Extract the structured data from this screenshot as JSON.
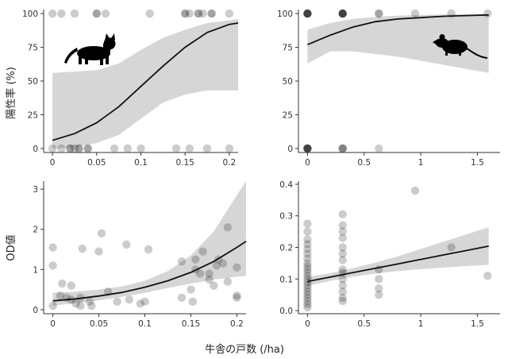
{
  "figure": {
    "ylabel_top": "陽性率 (%)",
    "ylabel_bottom": "OD値",
    "xlabel": "牛舎の戸数 (/ha)"
  },
  "chart_data": [
    {
      "panel": "top-left",
      "type": "scatter",
      "description_icon": "cat-silhouette-icon",
      "xlim": [
        -0.01,
        0.21
      ],
      "ylim": [
        -3,
        103
      ],
      "xticks": [
        "0",
        "0.05",
        "0.1",
        "0.15",
        "0.2"
      ],
      "xtick_values": [
        0,
        0.05,
        0.1,
        0.15,
        0.2
      ],
      "yticks": [
        "0",
        "25",
        "50",
        "75",
        "100"
      ],
      "ytick_values": [
        0,
        25,
        50,
        75,
        100
      ],
      "points": [
        {
          "x": 0.0,
          "y": 100,
          "n": 1
        },
        {
          "x": 0.01,
          "y": 100,
          "n": 1
        },
        {
          "x": 0.025,
          "y": 100,
          "n": 1
        },
        {
          "x": 0.05,
          "y": 100,
          "n": 2
        },
        {
          "x": 0.06,
          "y": 100,
          "n": 1
        },
        {
          "x": 0.11,
          "y": 100,
          "n": 1
        },
        {
          "x": 0.15,
          "y": 100,
          "n": 2
        },
        {
          "x": 0.155,
          "y": 100,
          "n": 1
        },
        {
          "x": 0.165,
          "y": 100,
          "n": 2
        },
        {
          "x": 0.17,
          "y": 100,
          "n": 1
        },
        {
          "x": 0.18,
          "y": 100,
          "n": 2
        },
        {
          "x": 0.2,
          "y": 100,
          "n": 1
        },
        {
          "x": 0.0,
          "y": 0,
          "n": 1
        },
        {
          "x": 0.01,
          "y": 0,
          "n": 1
        },
        {
          "x": 0.02,
          "y": 0,
          "n": 2
        },
        {
          "x": 0.025,
          "y": 0,
          "n": 1
        },
        {
          "x": 0.03,
          "y": 0,
          "n": 2
        },
        {
          "x": 0.04,
          "y": 0,
          "n": 2
        },
        {
          "x": 0.07,
          "y": 0,
          "n": 1
        },
        {
          "x": 0.085,
          "y": 0,
          "n": 1
        },
        {
          "x": 0.1,
          "y": 0,
          "n": 1
        },
        {
          "x": 0.14,
          "y": 0,
          "n": 1
        },
        {
          "x": 0.155,
          "y": 0,
          "n": 1
        },
        {
          "x": 0.175,
          "y": 0,
          "n": 1
        },
        {
          "x": 0.2,
          "y": 0,
          "n": 1
        }
      ],
      "fit": {
        "x": [
          0,
          0.025,
          0.05,
          0.075,
          0.1,
          0.125,
          0.15,
          0.175,
          0.2,
          0.21
        ],
        "y": [
          6,
          11,
          19,
          31,
          46,
          61,
          75,
          86,
          92,
          93
        ],
        "lower": [
          0,
          1,
          4,
          10,
          22,
          34,
          40,
          43,
          43,
          43
        ],
        "upper": [
          56,
          57,
          58,
          63,
          73,
          82,
          88,
          93,
          95,
          96
        ]
      }
    },
    {
      "panel": "top-right",
      "type": "scatter",
      "description_icon": "mouse-silhouette-icon",
      "xlim": [
        -0.08,
        1.7
      ],
      "ylim": [
        -3,
        103
      ],
      "xticks": [
        "0",
        "0.5",
        "1",
        "1.5"
      ],
      "xtick_values": [
        0,
        0.5,
        1,
        1.5
      ],
      "yticks": [
        "0",
        "25",
        "50",
        "75",
        "100"
      ],
      "ytick_values": [
        0,
        25,
        50,
        75,
        100
      ],
      "points": [
        {
          "x": 0.0,
          "y": 100,
          "n": 6
        },
        {
          "x": 0.31,
          "y": 100,
          "n": 6
        },
        {
          "x": 0.63,
          "y": 100,
          "n": 2
        },
        {
          "x": 0.95,
          "y": 100,
          "n": 1
        },
        {
          "x": 1.27,
          "y": 100,
          "n": 1
        },
        {
          "x": 1.59,
          "y": 100,
          "n": 1
        },
        {
          "x": 0.0,
          "y": 0,
          "n": 6
        },
        {
          "x": 0.31,
          "y": 0,
          "n": 3
        },
        {
          "x": 0.63,
          "y": 0,
          "n": 1
        }
      ],
      "fit": {
        "x": [
          0,
          0.2,
          0.4,
          0.6,
          0.8,
          1.0,
          1.2,
          1.4,
          1.6
        ],
        "y": [
          77,
          84,
          90,
          94,
          96,
          97,
          98,
          98.5,
          99
        ],
        "lower": [
          63,
          72,
          72,
          70,
          68,
          65,
          62,
          59,
          56
        ],
        "upper": [
          88,
          93,
          96,
          97.5,
          98.5,
          99,
          99.3,
          99.5,
          99.6
        ]
      }
    },
    {
      "panel": "bottom-left",
      "type": "scatter",
      "xlim": [
        -0.01,
        0.21
      ],
      "ylim": [
        -0.1,
        3.2
      ],
      "xticks": [
        "0",
        "0.05",
        "0.1",
        "0.15",
        "0.2"
      ],
      "xtick_values": [
        0,
        0.05,
        0.1,
        0.15,
        0.2
      ],
      "yticks": [
        "0",
        "1",
        "2",
        "3"
      ],
      "ytick_values": [
        0,
        1,
        2,
        3
      ],
      "points": [
        {
          "x": 0.0,
          "y": 1.55
        },
        {
          "x": 0.0,
          "y": 1.1
        },
        {
          "x": 0.0,
          "y": 0.1
        },
        {
          "x": 0.008,
          "y": 0.35
        },
        {
          "x": 0.01,
          "y": 0.65
        },
        {
          "x": 0.015,
          "y": 0.3
        },
        {
          "x": 0.02,
          "y": 0.6
        },
        {
          "x": 0.02,
          "y": 0.25
        },
        {
          "x": 0.025,
          "y": 0.15
        },
        {
          "x": 0.03,
          "y": 0.3
        },
        {
          "x": 0.03,
          "y": 0.1
        },
        {
          "x": 0.032,
          "y": 1.52
        },
        {
          "x": 0.04,
          "y": 0.2
        },
        {
          "x": 0.042,
          "y": 0.1
        },
        {
          "x": 0.05,
          "y": 1.45
        },
        {
          "x": 0.053,
          "y": 1.9
        },
        {
          "x": 0.06,
          "y": 0.45
        },
        {
          "x": 0.07,
          "y": 0.2
        },
        {
          "x": 0.08,
          "y": 1.62
        },
        {
          "x": 0.083,
          "y": 0.25
        },
        {
          "x": 0.095,
          "y": 0.15
        },
        {
          "x": 0.1,
          "y": 0.2
        },
        {
          "x": 0.104,
          "y": 1.5
        },
        {
          "x": 0.14,
          "y": 1.2
        },
        {
          "x": 0.14,
          "y": 0.3
        },
        {
          "x": 0.15,
          "y": 0.5
        },
        {
          "x": 0.152,
          "y": 0.2
        },
        {
          "x": 0.155,
          "y": 1.0
        },
        {
          "x": 0.155,
          "y": 1.25
        },
        {
          "x": 0.16,
          "y": 0.9
        },
        {
          "x": 0.163,
          "y": 1.45
        },
        {
          "x": 0.17,
          "y": 0.75
        },
        {
          "x": 0.17,
          "y": 0.9
        },
        {
          "x": 0.175,
          "y": 0.6
        },
        {
          "x": 0.178,
          "y": 1.1
        },
        {
          "x": 0.18,
          "y": 1.25
        },
        {
          "x": 0.185,
          "y": 1.15
        },
        {
          "x": 0.19,
          "y": 2.05
        },
        {
          "x": 0.19,
          "y": 0.7
        },
        {
          "x": 0.2,
          "y": 1.05
        },
        {
          "x": 0.2,
          "y": 0.35
        },
        {
          "x": 0.2,
          "y": 0.3
        }
      ],
      "fit": {
        "x": [
          0,
          0.025,
          0.05,
          0.075,
          0.1,
          0.125,
          0.15,
          0.175,
          0.2,
          0.21
        ],
        "y": [
          0.22,
          0.27,
          0.34,
          0.43,
          0.56,
          0.72,
          0.93,
          1.2,
          1.55,
          1.7
        ],
        "lower": [
          0.1,
          0.16,
          0.23,
          0.32,
          0.42,
          0.54,
          0.65,
          0.75,
          0.82,
          0.84
        ],
        "upper": [
          0.42,
          0.45,
          0.5,
          0.58,
          0.72,
          0.96,
          1.35,
          1.95,
          2.85,
          3.2
        ]
      }
    },
    {
      "panel": "bottom-right",
      "type": "scatter",
      "xlim": [
        -0.08,
        1.7
      ],
      "ylim": [
        -0.01,
        0.41
      ],
      "xticks": [
        "0",
        "0.5",
        "1",
        "1.5"
      ],
      "xtick_values": [
        0,
        0.5,
        1,
        1.5
      ],
      "yticks": [
        "0.0",
        "0.1",
        "0.2",
        "0.3",
        "0.4"
      ],
      "ytick_values": [
        0,
        0.1,
        0.2,
        0.3,
        0.4
      ],
      "points": [
        {
          "x": 0.0,
          "y": 0.275
        },
        {
          "x": 0.0,
          "y": 0.25
        },
        {
          "x": 0.0,
          "y": 0.225
        },
        {
          "x": 0.0,
          "y": 0.21
        },
        {
          "x": 0.0,
          "y": 0.195
        },
        {
          "x": 0.0,
          "y": 0.18
        },
        {
          "x": 0.0,
          "y": 0.165
        },
        {
          "x": 0.0,
          "y": 0.15
        },
        {
          "x": 0.0,
          "y": 0.14
        },
        {
          "x": 0.0,
          "y": 0.13
        },
        {
          "x": 0.0,
          "y": 0.12
        },
        {
          "x": 0.0,
          "y": 0.11
        },
        {
          "x": 0.0,
          "y": 0.1
        },
        {
          "x": 0.0,
          "y": 0.09
        },
        {
          "x": 0.0,
          "y": 0.08
        },
        {
          "x": 0.0,
          "y": 0.07
        },
        {
          "x": 0.0,
          "y": 0.06
        },
        {
          "x": 0.0,
          "y": 0.05
        },
        {
          "x": 0.0,
          "y": 0.04
        },
        {
          "x": 0.0,
          "y": 0.03
        },
        {
          "x": 0.0,
          "y": 0.02
        },
        {
          "x": 0.0,
          "y": 0.01
        },
        {
          "x": 0.31,
          "y": 0.305
        },
        {
          "x": 0.31,
          "y": 0.27
        },
        {
          "x": 0.31,
          "y": 0.25
        },
        {
          "x": 0.31,
          "y": 0.23
        },
        {
          "x": 0.31,
          "y": 0.2
        },
        {
          "x": 0.31,
          "y": 0.18
        },
        {
          "x": 0.31,
          "y": 0.16
        },
        {
          "x": 0.31,
          "y": 0.13
        },
        {
          "x": 0.31,
          "y": 0.12
        },
        {
          "x": 0.31,
          "y": 0.1
        },
        {
          "x": 0.31,
          "y": 0.08
        },
        {
          "x": 0.31,
          "y": 0.06
        },
        {
          "x": 0.31,
          "y": 0.04
        },
        {
          "x": 0.31,
          "y": 0.03
        },
        {
          "x": 0.63,
          "y": 0.13
        },
        {
          "x": 0.63,
          "y": 0.1
        },
        {
          "x": 0.63,
          "y": 0.07
        },
        {
          "x": 0.63,
          "y": 0.05
        },
        {
          "x": 0.95,
          "y": 0.38
        },
        {
          "x": 1.27,
          "y": 0.2
        },
        {
          "x": 1.59,
          "y": 0.11
        }
      ],
      "fit": {
        "x": [
          0,
          0.2,
          0.4,
          0.6,
          0.8,
          1.0,
          1.2,
          1.4,
          1.6
        ],
        "y": [
          0.092,
          0.106,
          0.12,
          0.134,
          0.148,
          0.162,
          0.176,
          0.19,
          0.204
        ],
        "lower": [
          0.078,
          0.094,
          0.107,
          0.117,
          0.125,
          0.131,
          0.136,
          0.141,
          0.145
        ],
        "upper": [
          0.107,
          0.118,
          0.134,
          0.152,
          0.172,
          0.195,
          0.218,
          0.241,
          0.264
        ]
      }
    }
  ]
}
